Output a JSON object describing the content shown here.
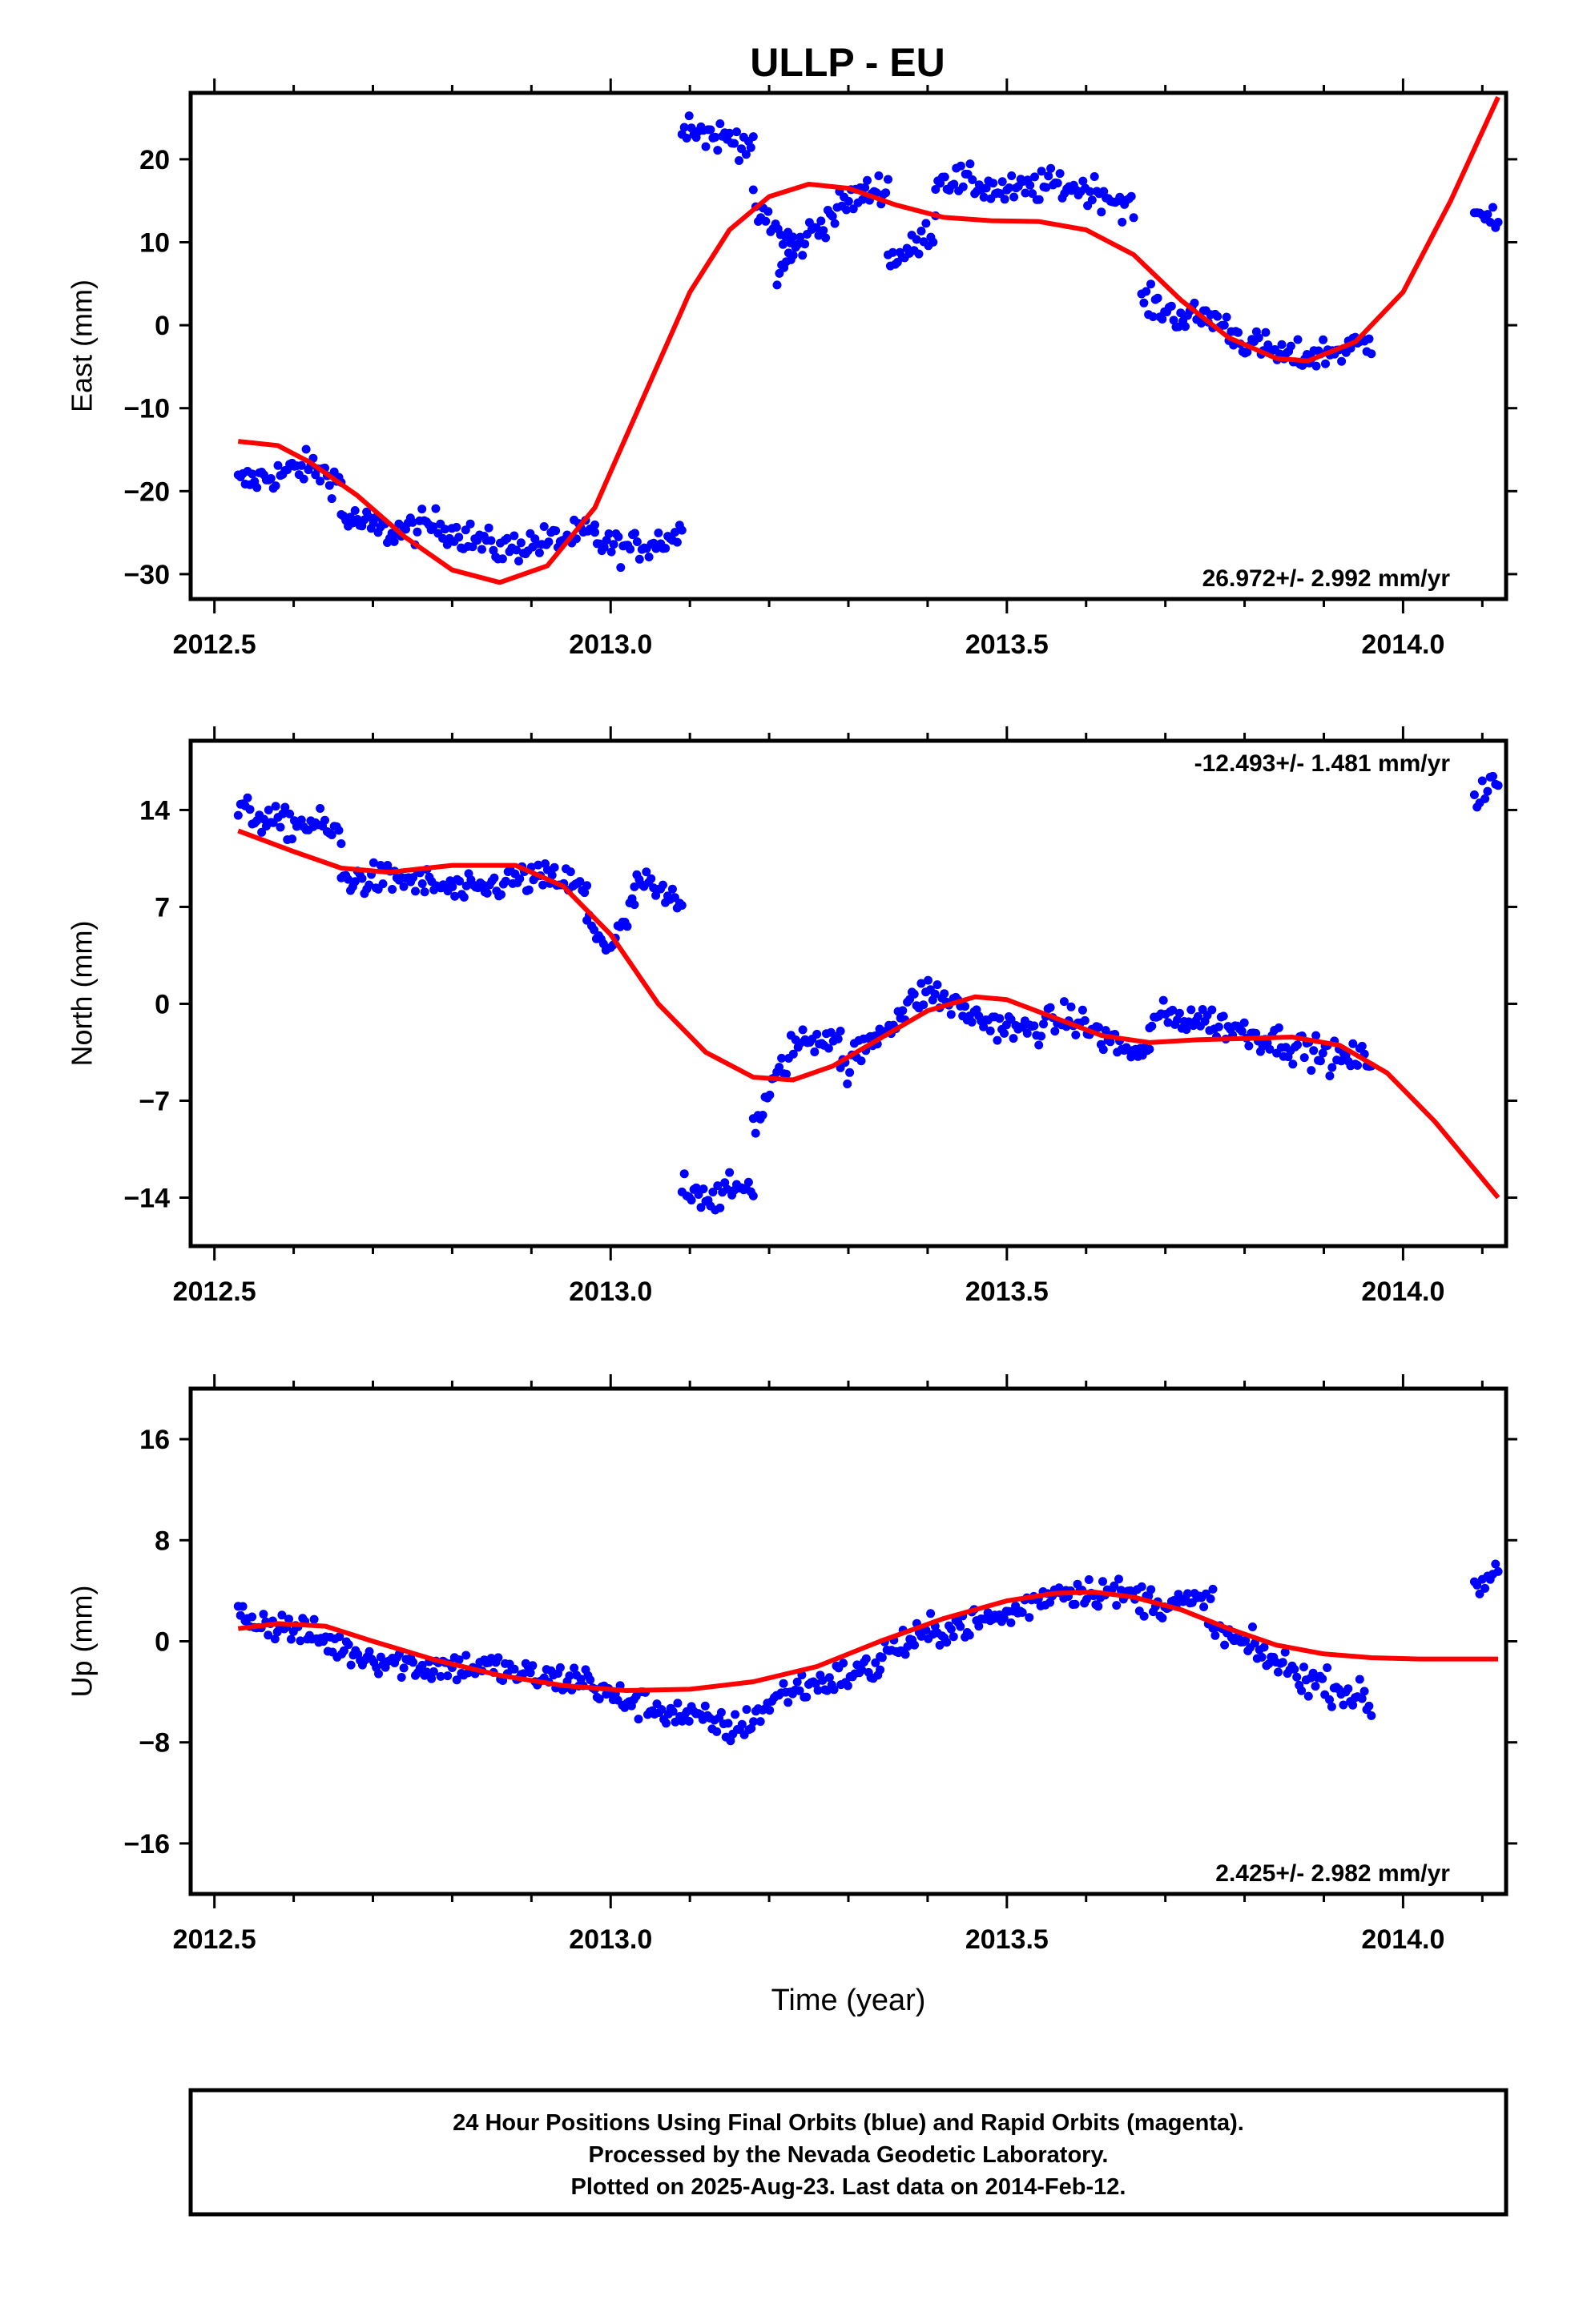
{
  "title": "ULLP - EU",
  "colors": {
    "final_orbits": "#0000ff",
    "model": "#ff0000",
    "frame": "#000000"
  },
  "caption": {
    "line1": "24 Hour Positions Using Final Orbits (blue) and Rapid Orbits (magenta).",
    "line2": "Processed by the Nevada Geodetic Laboratory.",
    "line3": "Plotted on 2025-Aug-23. Last data on 2014-Feb-12."
  },
  "chart_data": [
    {
      "type": "scatter",
      "ylabel": "East (mm)",
      "xlabel": "",
      "rate_text": "26.972+/- 2.992 mm/yr",
      "rate_position": "bottom-right",
      "xlim": [
        2012.47,
        2014.13
      ],
      "ylim": [
        -33,
        28
      ],
      "xticks": [
        2012.5,
        2013.0,
        2013.5,
        2014.0
      ],
      "xtick_labels": [
        "2012.5",
        "2013.0",
        "2013.5",
        "2014.0"
      ],
      "yticks": [
        -30,
        -20,
        -10,
        0,
        10,
        20
      ],
      "ytick_labels": [
        "−30",
        "−20",
        "−10",
        "0",
        "10",
        "20"
      ],
      "grid": false,
      "series": [
        {
          "kind": "points",
          "color": "#0000ff",
          "segments": [
            {
              "x": [
                2012.53,
                2012.58,
                2012.62,
                2012.66
              ],
              "y": [
                -19,
                -18,
                -17,
                -19
              ]
            },
            {
              "x": [
                2012.66,
                2012.72,
                2012.78,
                2012.86,
                2012.92,
                2012.98
              ],
              "y": [
                -23,
                -25,
                -24,
                -27,
                -26,
                -25
              ]
            },
            {
              "x": [
                2012.98,
                2013.02,
                2013.06,
                2013.09
              ],
              "y": [
                -26,
                -27,
                -26,
                -25
              ]
            },
            {
              "x": [
                2013.09,
                2013.12,
                2013.18
              ],
              "y": [
                25,
                23,
                22
              ]
            },
            {
              "x": [
                2013.18,
                2013.2,
                2013.23
              ],
              "y": [
                14,
                12,
                10
              ]
            },
            {
              "x": [
                2013.21,
                2013.25,
                2013.3,
                2013.35
              ],
              "y": [
                6,
                11,
                15,
                17
              ]
            },
            {
              "x": [
                2013.35,
                2013.38,
                2013.41
              ],
              "y": [
                8,
                9,
                12
              ]
            },
            {
              "x": [
                2013.41,
                2013.46,
                2013.5,
                2013.56,
                2013.62,
                2013.66
              ],
              "y": [
                18,
                17,
                16,
                17,
                16,
                14
              ]
            },
            {
              "x": [
                2013.67,
                2013.72,
                2013.76,
                2013.8,
                2013.86,
                2013.92,
                2013.96
              ],
              "y": [
                3,
                1,
                1,
                -2,
                -4,
                -3,
                -2
              ]
            },
            {
              "x": [
                2014.09,
                2014.12
              ],
              "y": [
                15,
                12
              ]
            }
          ]
        },
        {
          "kind": "line",
          "color": "#ff0000",
          "x": [
            2012.53,
            2012.58,
            2012.62,
            2012.68,
            2012.74,
            2012.8,
            2012.86,
            2012.92,
            2012.98,
            2013.04,
            2013.1,
            2013.15,
            2013.2,
            2013.25,
            2013.3,
            2013.36,
            2013.42,
            2013.48,
            2013.54,
            2013.6,
            2013.66,
            2013.72,
            2013.78,
            2013.84,
            2013.88,
            2013.94,
            2014.0,
            2014.06,
            2014.12
          ],
          "y": [
            -14,
            -14.5,
            -16.5,
            -20.5,
            -25.5,
            -29.5,
            -31,
            -29,
            -22,
            -9,
            4,
            11.5,
            15.5,
            17,
            16.5,
            14.5,
            13,
            12.6,
            12.5,
            11.5,
            8.5,
            3,
            -1.5,
            -4,
            -4.3,
            -2,
            4,
            15,
            27.5
          ]
        }
      ]
    },
    {
      "type": "scatter",
      "ylabel": "North (mm)",
      "xlabel": "",
      "rate_text": "-12.493+/- 1.481 mm/yr",
      "rate_position": "top-right",
      "xlim": [
        2012.47,
        2014.13
      ],
      "ylim": [
        -17.5,
        19
      ],
      "xticks": [
        2012.5,
        2013.0,
        2013.5,
        2014.0
      ],
      "xtick_labels": [
        "2012.5",
        "2013.0",
        "2013.5",
        "2014.0"
      ],
      "yticks": [
        -14,
        -7,
        0,
        7,
        14
      ],
      "ytick_labels": [
        "−14",
        "−7",
        "0",
        "7",
        "14"
      ],
      "grid": false,
      "series": [
        {
          "kind": "points",
          "color": "#0000ff",
          "segments": [
            {
              "x": [
                2012.53,
                2012.58,
                2012.63,
                2012.66
              ],
              "y": [
                14,
                13,
                13,
                12
              ]
            },
            {
              "x": [
                2012.66,
                2012.74,
                2012.82,
                2012.88,
                2012.94,
                2012.97
              ],
              "y": [
                9,
                9,
                8,
                9,
                9,
                8
              ]
            },
            {
              "x": [
                2012.97,
                2013.0,
                2013.03
              ],
              "y": [
                6,
                4,
                7
              ]
            },
            {
              "x": [
                2013.03,
                2013.06,
                2013.09
              ],
              "y": [
                9,
                8,
                7
              ]
            },
            {
              "x": [
                2013.09,
                2013.13,
                2013.18
              ],
              "y": [
                -13,
                -14,
                -13
              ]
            },
            {
              "x": [
                2013.18,
                2013.23,
                2013.29
              ],
              "y": [
                -9,
                -3,
                -2
              ]
            },
            {
              "x": [
                2013.29,
                2013.34,
                2013.4,
                2013.46,
                2013.52,
                2013.58,
                2013.64,
                2013.68
              ],
              "y": [
                -5,
                -2,
                1,
                -1,
                -2,
                -1,
                -3,
                -4
              ]
            },
            {
              "x": [
                2013.68,
                2013.74,
                2013.8,
                2013.86,
                2013.92,
                2013.96
              ],
              "y": [
                -1,
                -1,
                -2,
                -3,
                -4,
                -4
              ]
            },
            {
              "x": [
                2014.09,
                2014.12
              ],
              "y": [
                15,
                16
              ]
            }
          ]
        },
        {
          "kind": "line",
          "color": "#ff0000",
          "x": [
            2012.53,
            2012.6,
            2012.66,
            2012.72,
            2012.8,
            2012.88,
            2012.94,
            2013.0,
            2013.06,
            2013.12,
            2013.18,
            2013.23,
            2013.28,
            2013.34,
            2013.4,
            2013.46,
            2013.5,
            2013.56,
            2013.62,
            2013.68,
            2013.74,
            2013.8,
            2013.86,
            2013.92,
            2013.98,
            2014.04,
            2014.12
          ],
          "y": [
            12.5,
            11,
            9.8,
            9.5,
            10,
            10,
            8.5,
            5,
            0,
            -3.5,
            -5.3,
            -5.5,
            -4.5,
            -2.5,
            -0.5,
            0.5,
            0.3,
            -1,
            -2.3,
            -2.8,
            -2.6,
            -2.5,
            -2.4,
            -3,
            -5,
            -8.5,
            -14
          ]
        }
      ]
    },
    {
      "type": "scatter",
      "ylabel": "Up (mm)",
      "xlabel": "Time (year)",
      "rate_text": "2.425+/- 2.982 mm/yr",
      "rate_position": "bottom-right",
      "xlim": [
        2012.47,
        2014.13
      ],
      "ylim": [
        -20,
        20
      ],
      "xticks": [
        2012.5,
        2013.0,
        2013.5,
        2014.0
      ],
      "xtick_labels": [
        "2012.5",
        "2013.0",
        "2013.5",
        "2014.0"
      ],
      "yticks": [
        -16,
        -8,
        0,
        8,
        16
      ],
      "ytick_labels": [
        "−16",
        "−8",
        "0",
        "8",
        "16"
      ],
      "grid": false,
      "series": [
        {
          "kind": "points",
          "color": "#0000ff",
          "segments": [
            {
              "x": [
                2012.53,
                2012.6,
                2012.68,
                2012.76,
                2012.84,
                2012.92,
                2012.98
              ],
              "y": [
                2,
                1,
                -1,
                -2,
                -2,
                -3,
                -3
              ]
            },
            {
              "x": [
                2012.98,
                2013.04,
                2013.1,
                2013.16,
                2013.22,
                2013.28,
                2013.34
              ],
              "y": [
                -4,
                -5,
                -6,
                -7,
                -4,
                -3,
                -2
              ]
            },
            {
              "x": [
                2013.34,
                2013.42,
                2013.5,
                2013.56,
                2013.62,
                2013.7,
                2013.76
              ],
              "y": [
                -1,
                1,
                2,
                4,
                4,
                3,
                3
              ]
            },
            {
              "x": [
                2013.76,
                2013.82,
                2013.88,
                2013.93,
                2013.96
              ],
              "y": [
                1,
                -1,
                -3,
                -4,
                -5
              ]
            },
            {
              "x": [
                2014.09,
                2014.12
              ],
              "y": [
                4,
                6
              ]
            }
          ]
        },
        {
          "kind": "line",
          "color": "#ff0000",
          "x": [
            2012.53,
            2012.58,
            2012.64,
            2012.7,
            2012.78,
            2012.86,
            2012.94,
            2013.02,
            2013.1,
            2013.18,
            2013.26,
            2013.34,
            2013.42,
            2013.5,
            2013.56,
            2013.61,
            2013.66,
            2013.72,
            2013.78,
            2013.84,
            2013.9,
            2013.96,
            2014.02,
            2014.08,
            2014.12
          ],
          "y": [
            1,
            1.4,
            1.2,
            0,
            -1.5,
            -2.7,
            -3.5,
            -3.9,
            -3.8,
            -3.2,
            -2,
            0,
            1.8,
            3.2,
            3.8,
            3.9,
            3.5,
            2.5,
            1,
            -0.3,
            -1,
            -1.3,
            -1.4,
            -1.4,
            -1.4
          ]
        }
      ]
    }
  ]
}
